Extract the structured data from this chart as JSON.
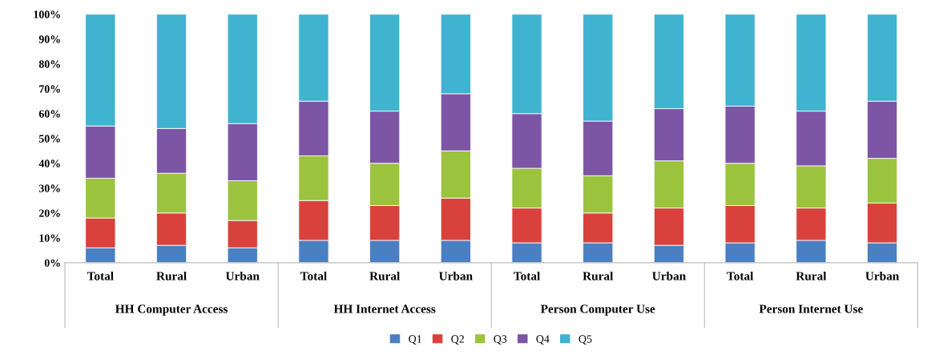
{
  "chart_data": {
    "type": "bar",
    "stacked": true,
    "categories": [
      "Total",
      "Rural",
      "Urban",
      "Total",
      "Rural",
      "Urban",
      "Total",
      "Rural",
      "Urban",
      "Total",
      "Rural",
      "Urban"
    ],
    "annotations": [
      "HH Computer Access",
      "HH Internet Access",
      "Person Computer Use",
      "Person Internet Use"
    ],
    "series": [
      {
        "name": "Q1",
        "color": "#4a7fc1",
        "values": [
          6,
          7,
          6,
          9,
          9,
          9,
          8,
          8,
          7,
          8,
          9,
          8
        ]
      },
      {
        "name": "Q2",
        "color": "#d9423c",
        "values": [
          12,
          13,
          11,
          16,
          14,
          17,
          14,
          12,
          15,
          15,
          13,
          16
        ]
      },
      {
        "name": "Q3",
        "color": "#9bc33e",
        "values": [
          16,
          16,
          16,
          18,
          17,
          19,
          16,
          15,
          19,
          17,
          17,
          18
        ]
      },
      {
        "name": "Q4",
        "color": "#7d55a5",
        "values": [
          21,
          18,
          23,
          22,
          21,
          23,
          22,
          22,
          21,
          23,
          22,
          23
        ]
      },
      {
        "name": "Q5",
        "color": "#3fb3d0",
        "values": [
          45,
          46,
          44,
          35,
          39,
          32,
          40,
          43,
          38,
          37,
          39,
          35
        ]
      }
    ],
    "ylim": [
      0,
      100
    ],
    "yticks": [
      {
        "value": 0,
        "label": "0%"
      },
      {
        "value": 10,
        "label": "10%"
      },
      {
        "value": 20,
        "label": "20%"
      },
      {
        "value": 30,
        "label": "30%"
      },
      {
        "value": 40,
        "label": "40%"
      },
      {
        "value": 50,
        "label": "50%"
      },
      {
        "value": 60,
        "label": "60%"
      },
      {
        "value": 70,
        "label": "70%"
      },
      {
        "value": 80,
        "label": "80%"
      },
      {
        "value": 90,
        "label": "90%"
      },
      {
        "value": 100,
        "label": "100%"
      }
    ],
    "grid": false,
    "legend": "bottom"
  }
}
